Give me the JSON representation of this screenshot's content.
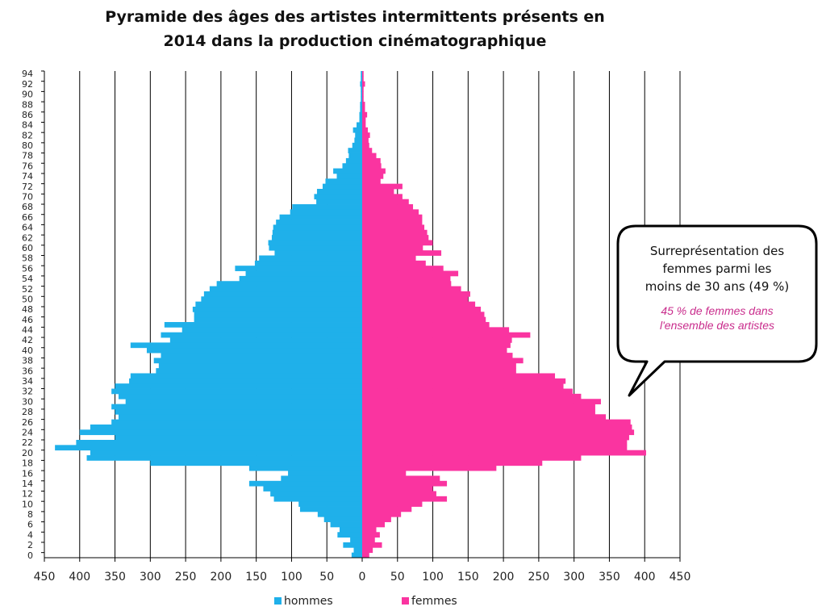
{
  "chart_data": {
    "type": "bar",
    "orientation": "horizontal",
    "layout": "population-pyramid",
    "title_lines": [
      "Pyramide des âges des artistes intermittents présents en",
      "2014 dans la production cinématographique"
    ],
    "y_tick_labels": [
      "0",
      "2",
      "4",
      "6",
      "8",
      "10",
      "12",
      "14",
      "16",
      "18",
      "20",
      "22",
      "24",
      "26",
      "28",
      "30",
      "32",
      "34",
      "36",
      "38",
      "40",
      "42",
      "44",
      "46",
      "48",
      "50",
      "52",
      "54",
      "56",
      "58",
      "60",
      "62",
      "64",
      "66",
      "68",
      "70",
      "72",
      "74",
      "76",
      "78",
      "80",
      "82",
      "84",
      "86",
      "88",
      "90",
      "92",
      "94"
    ],
    "x_tick_labels": [
      "450",
      "400",
      "350",
      "300",
      "250",
      "200",
      "150",
      "100",
      "50",
      "0",
      "50",
      "100",
      "150",
      "200",
      "250",
      "300",
      "350",
      "400",
      "450"
    ],
    "xlim": [
      -450,
      450
    ],
    "ylim": [
      0,
      94
    ],
    "grid": "vertical",
    "legend_position": "bottom",
    "ages": [
      0,
      1,
      2,
      3,
      4,
      5,
      6,
      7,
      8,
      9,
      10,
      11,
      12,
      13,
      14,
      15,
      16,
      17,
      18,
      19,
      20,
      21,
      22,
      23,
      24,
      25,
      26,
      27,
      28,
      29,
      30,
      31,
      32,
      33,
      34,
      35,
      36,
      37,
      38,
      39,
      40,
      41,
      42,
      43,
      44,
      45,
      46,
      47,
      48,
      49,
      50,
      51,
      52,
      53,
      54,
      55,
      56,
      57,
      58,
      59,
      60,
      61,
      62,
      63,
      64,
      65,
      66,
      67,
      68,
      69,
      70,
      71,
      72,
      73,
      74,
      75,
      76,
      77,
      78,
      79,
      80,
      81,
      82,
      83,
      84,
      85,
      86,
      87,
      88,
      89,
      90,
      91,
      92,
      93,
      94
    ],
    "series": [
      {
        "name": "hommes",
        "color": "#1fb0ea",
        "side": "left",
        "values": [
          15,
          12,
          27,
          17,
          35,
          32,
          45,
          54,
          63,
          88,
          90,
          125,
          130,
          140,
          160,
          115,
          105,
          160,
          300,
          390,
          385,
          435,
          405,
          350,
          400,
          385,
          355,
          345,
          350,
          355,
          335,
          345,
          355,
          350,
          330,
          328,
          292,
          288,
          295,
          285,
          305,
          328,
          272,
          285,
          255,
          280,
          238,
          238,
          240,
          236,
          228,
          224,
          216,
          206,
          174,
          165,
          180,
          152,
          146,
          124,
          132,
          133,
          128,
          127,
          126,
          122,
          117,
          102,
          99,
          65,
          68,
          64,
          56,
          52,
          36,
          41,
          28,
          23,
          19,
          20,
          14,
          11,
          10,
          13,
          8,
          4,
          4,
          3,
          3,
          2,
          2,
          2,
          3,
          2,
          2
        ]
      },
      {
        "name": "femmes",
        "color": "#fa34a0",
        "side": "right",
        "values": [
          10,
          15,
          28,
          18,
          25,
          20,
          32,
          41,
          55,
          70,
          85,
          120,
          105,
          100,
          120,
          110,
          62,
          190,
          255,
          310,
          402,
          375,
          375,
          378,
          385,
          382,
          380,
          345,
          330,
          330,
          338,
          310,
          298,
          285,
          288,
          273,
          218,
          218,
          228,
          213,
          205,
          210,
          212,
          238,
          208,
          180,
          175,
          173,
          168,
          160,
          150,
          153,
          140,
          126,
          125,
          136,
          115,
          90,
          76,
          112,
          86,
          100,
          94,
          92,
          88,
          85,
          85,
          80,
          72,
          66,
          57,
          45,
          57,
          26,
          30,
          33,
          27,
          26,
          20,
          14,
          10,
          9,
          11,
          8,
          5,
          5,
          7,
          4,
          4,
          2,
          2,
          2,
          4,
          2,
          2
        ]
      }
    ]
  },
  "legend": {
    "hommes_label": "hommes",
    "femmes_label": "femmes"
  },
  "callout": {
    "line1": "Surreprésentation des",
    "line2": "femmes parmi les",
    "line3": "moins de 30 ans (49 %)",
    "note_line1": "45 % de femmes dans",
    "note_line2": "l'ensemble des artistes",
    "note_color": "#c92c8c"
  }
}
